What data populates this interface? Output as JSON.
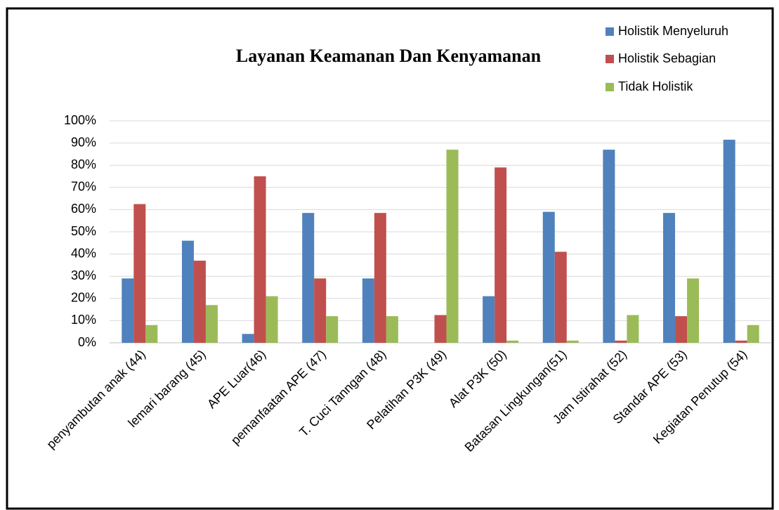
{
  "chart_data": {
    "type": "bar",
    "title": "Layanan Keamanan Dan Kenyamanan",
    "categories": [
      "penyambutan anak (44)",
      "lemari barang (45)",
      "APE Luar(46)",
      "pemanfaatan APE (47)",
      "T. Cuci Tanngan (48)",
      "Pelatihan P3K (49)",
      "Alat P3K (50)",
      "Batasan Lingkungan(51)",
      "Jam Istirahat (52)",
      "Standar APE (53)",
      "Kegiatan Penutup (54)"
    ],
    "series": [
      {
        "name": "Holistik Menyeluruh",
        "color": "#4f81bd",
        "values": [
          29,
          46,
          4,
          58.5,
          29,
          0,
          21,
          59,
          87,
          58.5,
          91.5
        ]
      },
      {
        "name": "Holistik Sebagian",
        "color": "#c0504d",
        "values": [
          62.5,
          37,
          75,
          29,
          58.5,
          12.5,
          79,
          41,
          1,
          12,
          1
        ]
      },
      {
        "name": "Tidak Holistik",
        "color": "#9bbb59",
        "values": [
          8,
          17,
          21,
          12,
          12,
          87,
          1,
          1,
          12.5,
          29,
          8
        ]
      }
    ],
    "ylim": [
      0,
      100
    ],
    "yticks": [
      {
        "value": 0,
        "label": "0%"
      },
      {
        "value": 10,
        "label": "10%"
      },
      {
        "value": 20,
        "label": "20%"
      },
      {
        "value": 30,
        "label": "30%"
      },
      {
        "value": 40,
        "label": "40%"
      },
      {
        "value": 50,
        "label": "50%"
      },
      {
        "value": 60,
        "label": "60%"
      },
      {
        "value": 70,
        "label": "70%"
      },
      {
        "value": 80,
        "label": "80%"
      },
      {
        "value": 90,
        "label": "90%"
      },
      {
        "value": 100,
        "label": "100%"
      }
    ],
    "grid": true,
    "legend": "top-right"
  }
}
